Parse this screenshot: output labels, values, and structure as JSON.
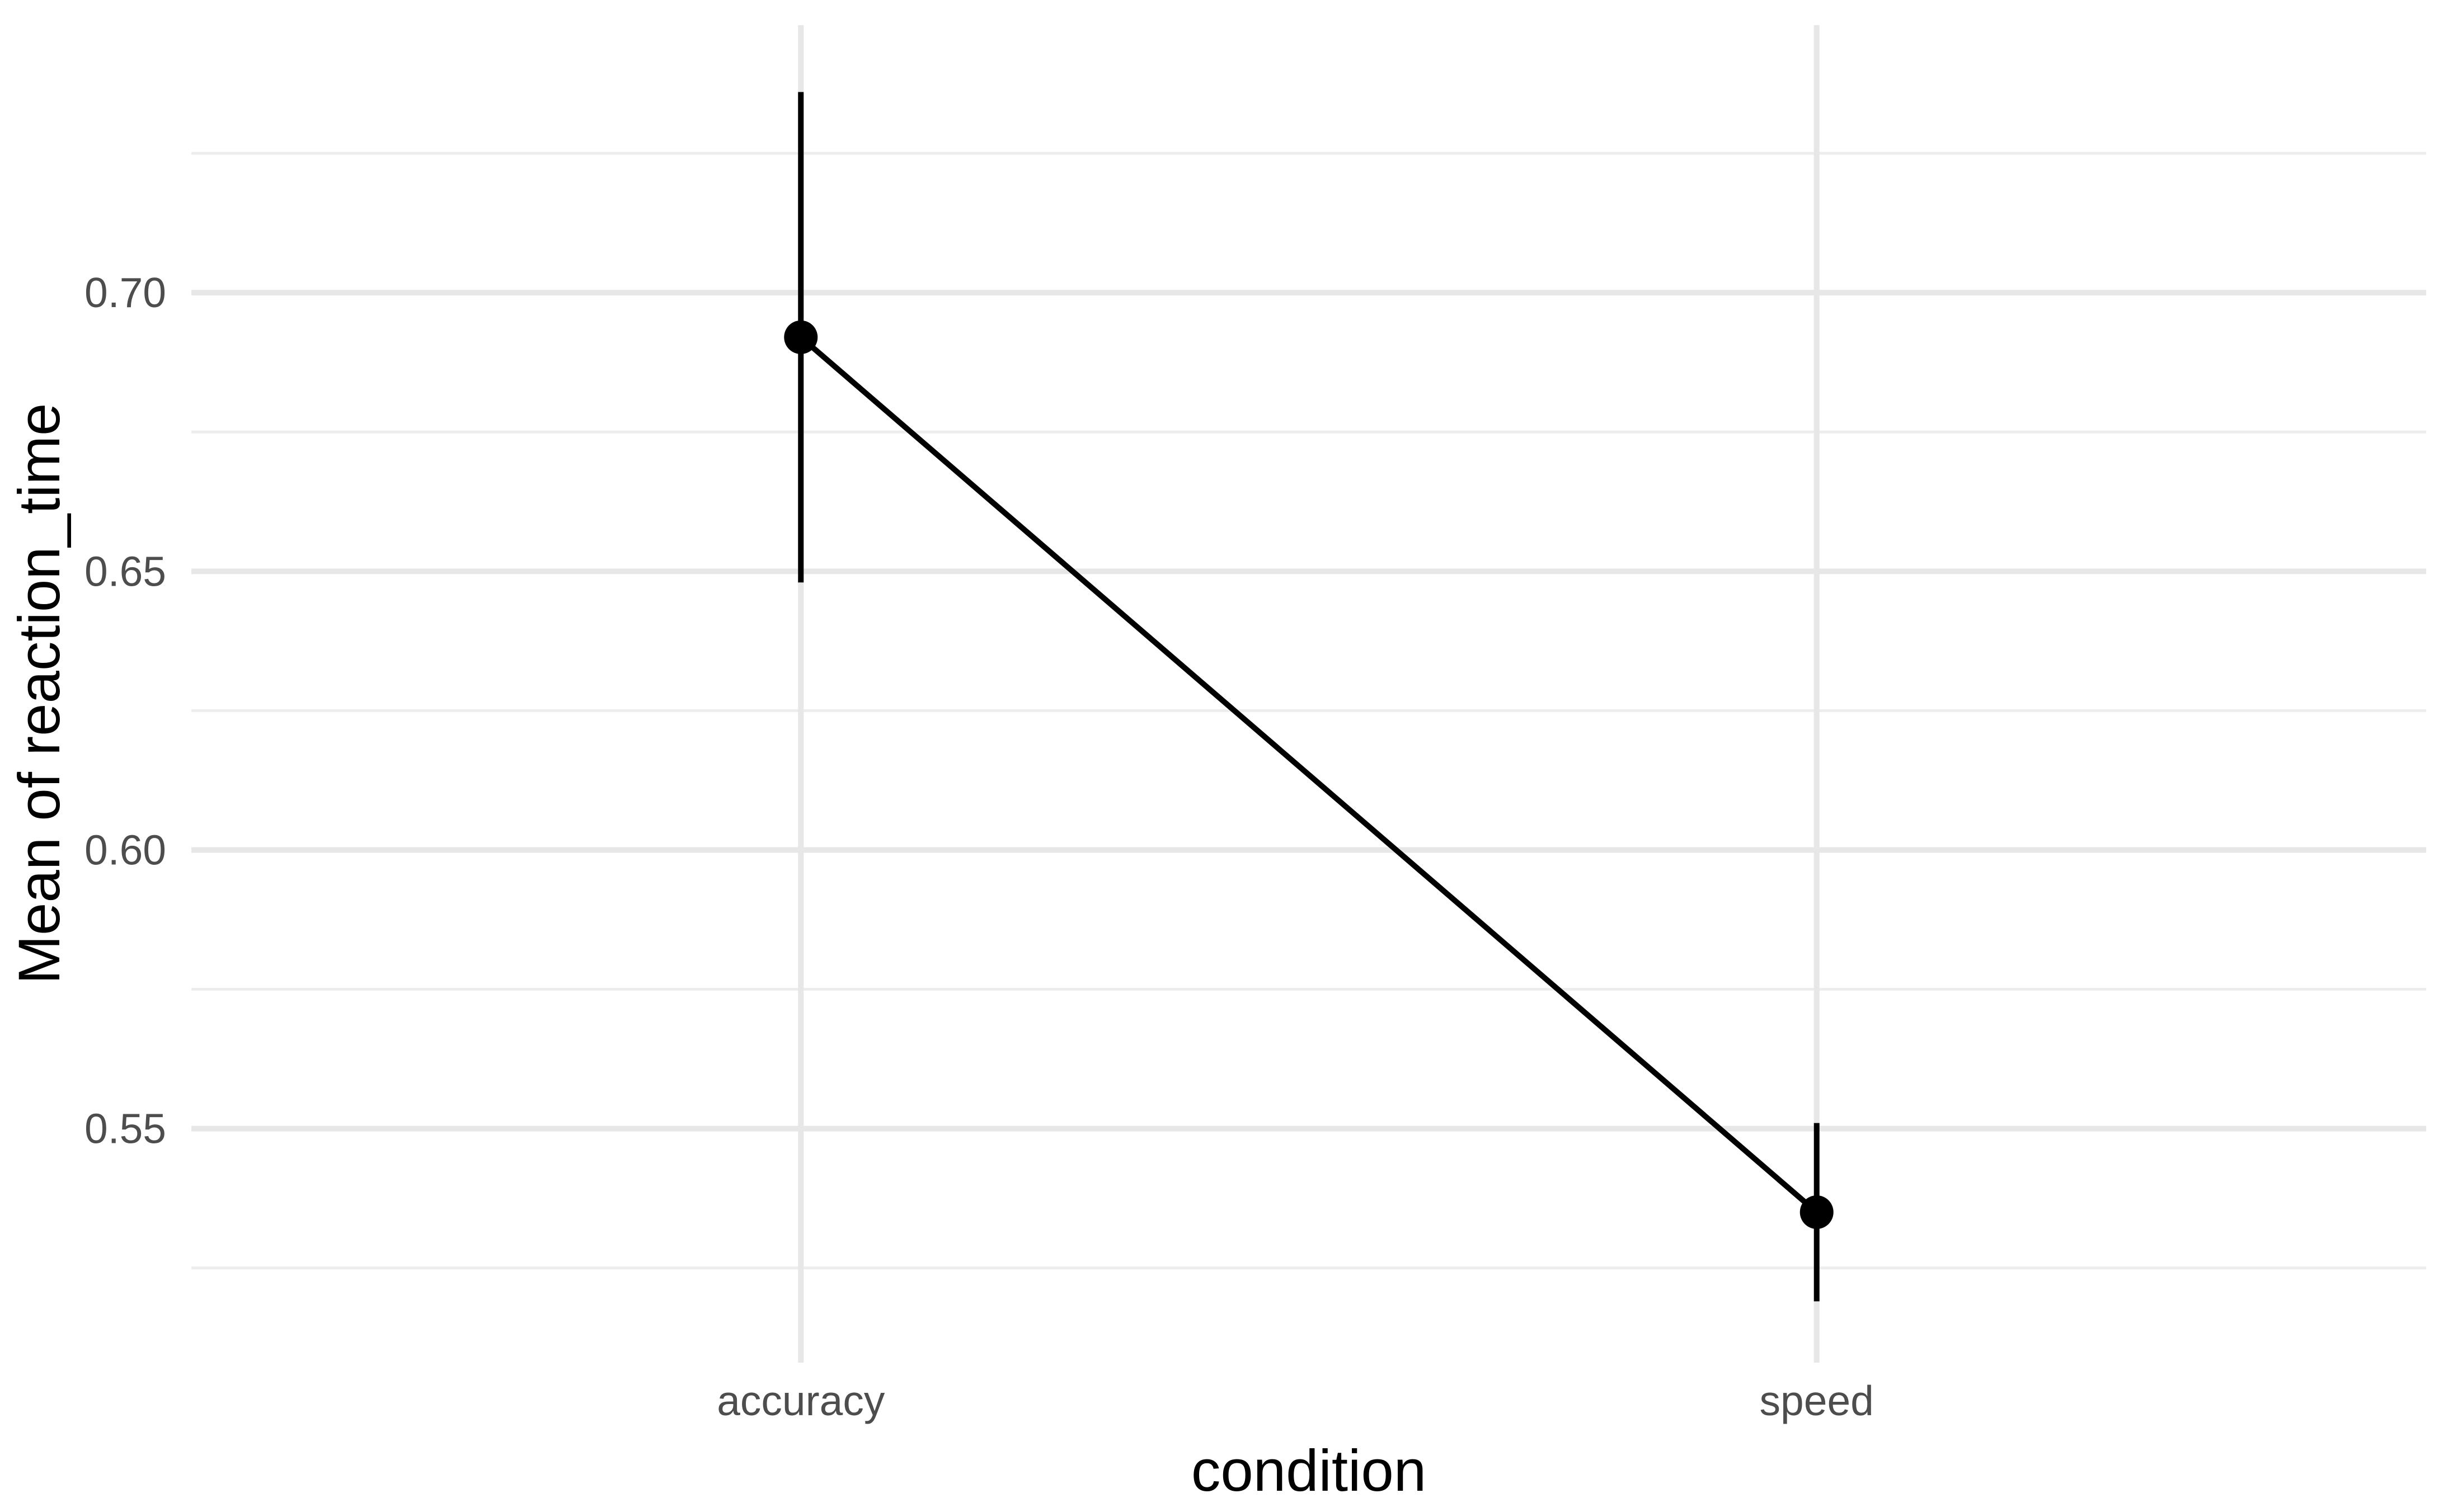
{
  "chart_data": {
    "type": "line",
    "title": "",
    "xlabel": "condition",
    "ylabel": "Mean of reaction_time",
    "categories": [
      "accuracy",
      "speed"
    ],
    "series": [
      {
        "name": "mean of reaction_time",
        "values": [
          0.692,
          0.535
        ],
        "ci_low": [
          0.648,
          0.519
        ],
        "ci_high": [
          0.736,
          0.551
        ]
      }
    ],
    "ytick_values": [
      0.55,
      0.6,
      0.65,
      0.7
    ],
    "ytick_labels": [
      "0.55",
      "0.60",
      "0.65",
      "0.70"
    ],
    "minor_gridline_values": [
      0.525,
      0.575,
      0.625,
      0.675,
      0.725
    ],
    "ylim": [
      0.508,
      0.748
    ],
    "legend": "none",
    "grid": {
      "horizontal_major": true,
      "horizontal_minor": true,
      "vertical_at_categories": true
    },
    "marker": "point-with-error-bar",
    "colors": {
      "background": "#ffffff",
      "point": "#000000",
      "line": "#000000",
      "error_bar": "#000000",
      "grid_major": "#e7e7e7",
      "grid_minor": "#ededed",
      "tick_label": "#4d4d4d",
      "axis_title": "#000000"
    }
  }
}
